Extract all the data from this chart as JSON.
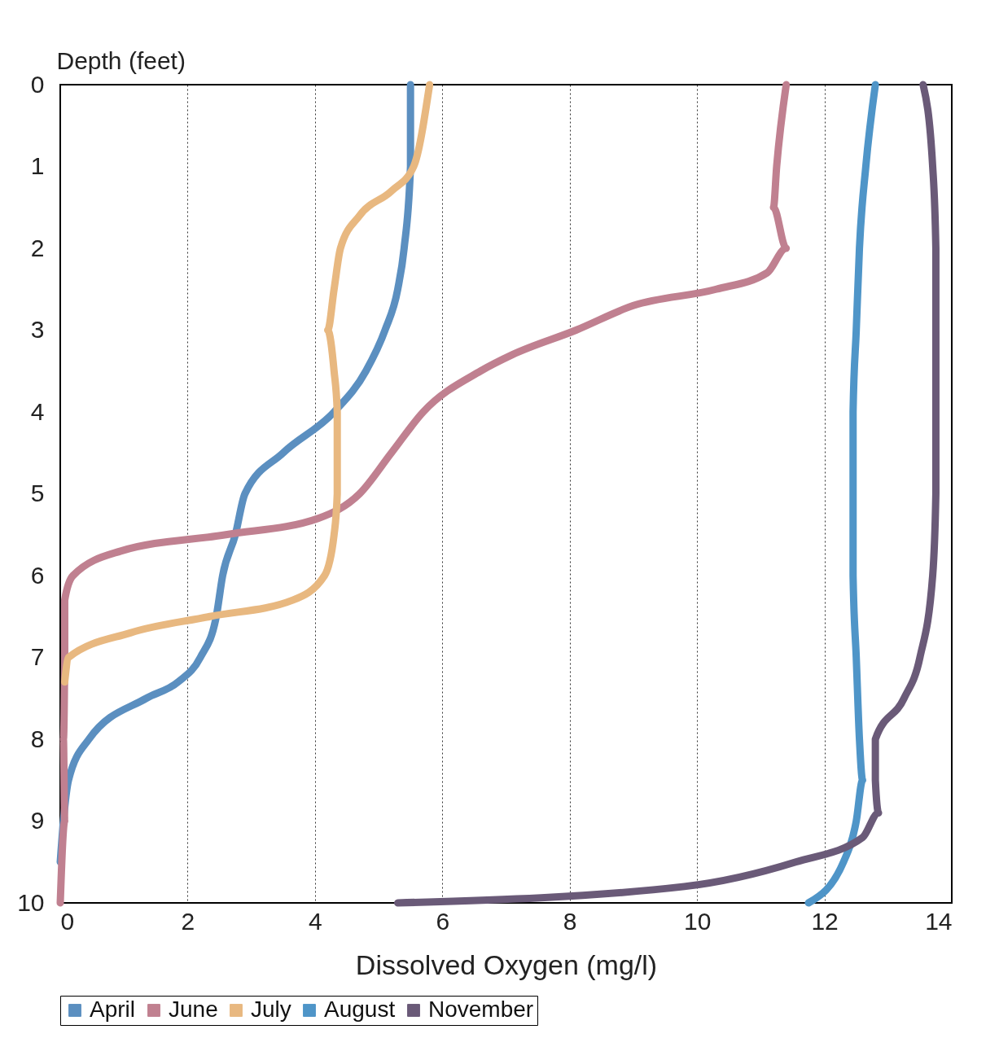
{
  "chart_data": {
    "type": "line",
    "xlabel": "Dissolved Oxygen (mg/l)",
    "ylabel": "Depth (feet)",
    "xlim": [
      0,
      14
    ],
    "xticks": [
      0,
      2,
      4,
      6,
      8,
      10,
      12,
      14
    ],
    "ylim": [
      10,
      0
    ],
    "yticks": [
      0,
      1,
      2,
      3,
      4,
      5,
      6,
      7,
      8,
      9,
      10
    ],
    "grid": "x",
    "legend": "bottom",
    "series": [
      {
        "name": "April",
        "color": "#5b8fc0",
        "x": [
          5.5,
          5.5,
          5.4,
          5.3,
          5.1,
          4.8,
          4.3,
          3.5,
          2.9,
          2.75,
          2.55,
          2.45,
          2.2,
          1.85,
          1.35,
          0.45,
          0.13,
          0.05,
          0
        ],
        "values": [
          0,
          1,
          2,
          2.5,
          3,
          3.5,
          4,
          4.5,
          5,
          5.5,
          6,
          6.5,
          7,
          7.3,
          7.5,
          8,
          8.5,
          9,
          9.5
        ]
      },
      {
        "name": "June",
        "color": "#c08090",
        "x": [
          11.4,
          11.25,
          11.2,
          11.4,
          11.1,
          10.3,
          9.0,
          8.1,
          7.1,
          6.6,
          5.7,
          5.2,
          4.7,
          4.05,
          2.6,
          0.95,
          0.2,
          0.07,
          0.07,
          0.05,
          0.07,
          0
        ],
        "values": [
          0,
          1,
          1.5,
          2,
          2.3,
          2.5,
          2.7,
          3,
          3.3,
          3.5,
          4,
          4.5,
          5,
          5.3,
          5.5,
          5.7,
          6,
          6.3,
          7,
          8,
          9,
          10
        ]
      },
      {
        "name": "July",
        "color": "#e8b880",
        "x": [
          5.8,
          5.55,
          5.2,
          4.7,
          4.4,
          4.3,
          4.2,
          4.3,
          4.35,
          4.35,
          4.35,
          4.3,
          4.15,
          3.65,
          2.35,
          1.1,
          0.13,
          0.07
        ],
        "values": [
          0,
          1,
          1.3,
          1.6,
          2,
          2.5,
          3,
          3.5,
          4,
          4.5,
          5,
          5.5,
          6,
          6.3,
          6.5,
          6.7,
          7,
          7.3
        ]
      },
      {
        "name": "August",
        "color": "#4f95c8",
        "x": [
          12.8,
          12.65,
          12.55,
          12.5,
          12.45,
          12.45,
          12.45,
          12.5,
          12.55,
          12.6,
          12.5,
          12.3,
          11.75
        ],
        "values": [
          0,
          1,
          2,
          3,
          4,
          5,
          6,
          7,
          8,
          8.5,
          9,
          9.5,
          10
        ]
      },
      {
        "name": "November",
        "color": "#6a5a78",
        "x": [
          13.55,
          13.7,
          13.75,
          13.75,
          13.75,
          13.75,
          13.7,
          13.5,
          13.25,
          12.8,
          12.8,
          12.85,
          12.6,
          11.55,
          9.8,
          5.3
        ],
        "values": [
          0,
          1,
          2,
          3,
          4,
          5,
          6,
          7,
          7.5,
          8,
          8.5,
          8.9,
          9.2,
          9.5,
          9.8,
          10
        ]
      }
    ]
  }
}
